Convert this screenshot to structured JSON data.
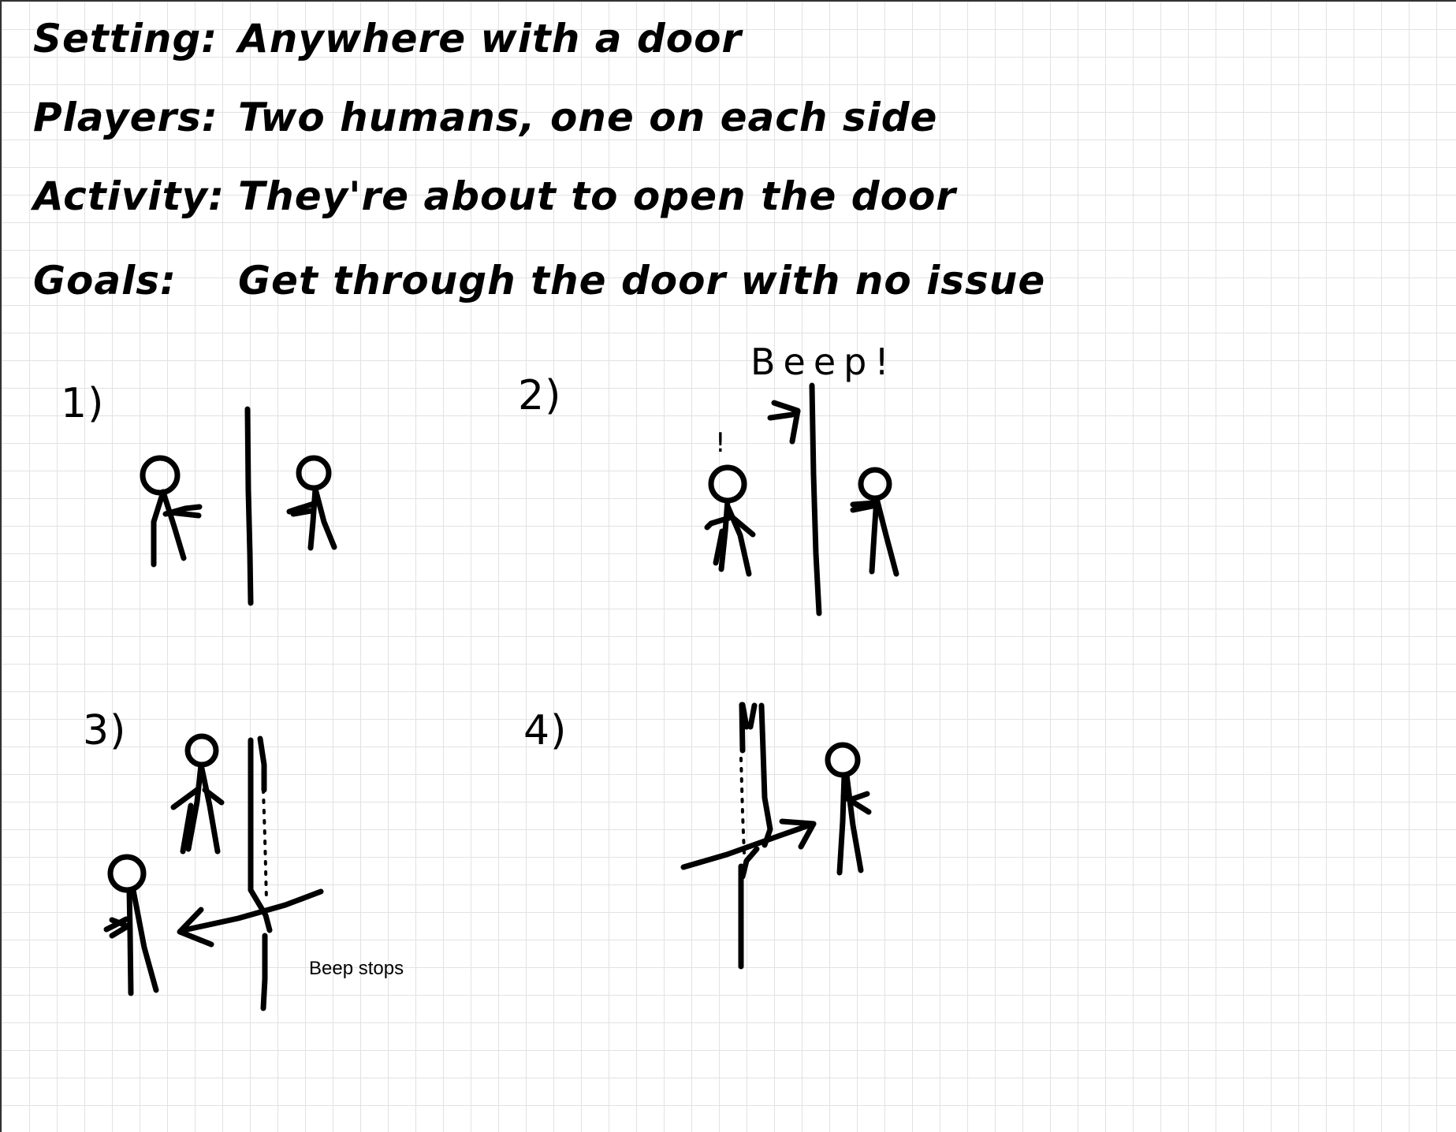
{
  "notes": {
    "setting_label": "Setting:",
    "setting_value": "Anywhere with a door",
    "players_label": "Players:",
    "players_value": "Two humans, one on each side",
    "activity_label": "Activity:",
    "activity_value": "They're about to open the door",
    "goals_label": "Goals:",
    "goals_value": "Get through the door with no issue"
  },
  "panels": {
    "p1_label": "1)",
    "p2_label": "2)",
    "p2_sound": "Beep!",
    "p2_exclaim": "!",
    "p3_label": "3)",
    "p3_caption": "Beep stops",
    "p4_label": "4)"
  },
  "colors": {
    "ink": "#000000",
    "grid": "#e2e2e2",
    "paper": "#ffffff"
  }
}
